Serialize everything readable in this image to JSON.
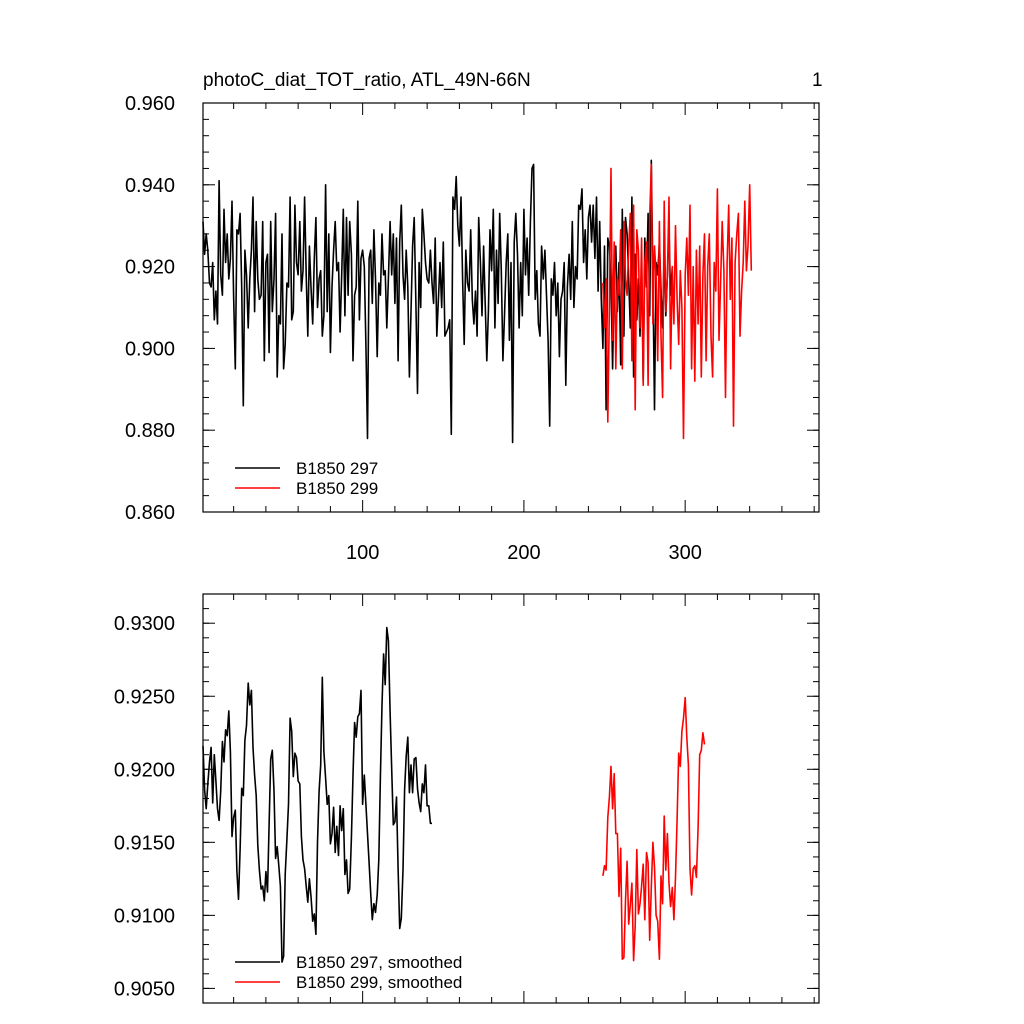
{
  "figure": {
    "title": "photoC_diat_TOT_ratio, ATL_49N-66N",
    "corner_label": "1"
  },
  "chart_data": [
    {
      "type": "line",
      "title": "photoC_diat_TOT_ratio, ATL_49N-66N",
      "xlim": [
        1,
        383
      ],
      "ylim": [
        0.86,
        0.96
      ],
      "x_ticks": [
        100,
        200,
        300
      ],
      "x_tick_labels": [
        "100",
        "200",
        "300"
      ],
      "y_ticks": [
        0.86,
        0.88,
        0.9,
        0.92,
        0.94,
        0.96
      ],
      "y_tick_labels": [
        "0.860",
        "0.880",
        "0.900",
        "0.920",
        "0.940",
        "0.960"
      ],
      "legend_position": "bottom-left",
      "series": [
        {
          "name": "B1850 297",
          "color": "#000000",
          "x_start": 1,
          "values": [
            0.931,
            0.923,
            0.928,
            0.924,
            0.916,
            0.915,
            0.921,
            0.907,
            0.914,
            0.906,
            0.941,
            0.918,
            0.913,
            0.934,
            0.921,
            0.928,
            0.917,
            0.922,
            0.936,
            0.913,
            0.895,
            0.929,
            0.928,
            0.933,
            0.915,
            0.886,
            0.924,
            0.918,
            0.905,
            0.917,
            0.924,
            0.937,
            0.909,
            0.931,
            0.917,
            0.912,
            0.913,
            0.931,
            0.897,
            0.921,
            0.923,
            0.899,
            0.931,
            0.909,
            0.917,
            0.933,
            0.893,
            0.908,
            0.906,
            0.928,
            0.895,
            0.901,
            0.916,
            0.915,
            0.937,
            0.907,
            0.909,
            0.935,
            0.921,
            0.918,
            0.931,
            0.914,
            0.919,
            0.937,
            0.918,
            0.903,
            0.925,
            0.915,
            0.906,
            0.922,
            0.932,
            0.91,
            0.917,
            0.919,
            0.903,
            0.908,
            0.94,
            0.909,
            0.928,
            0.899,
            0.915,
            0.924,
            0.931,
            0.919,
            0.921,
            0.904,
            0.918,
            0.934,
            0.908,
            0.932,
            0.913,
            0.931,
            0.923,
            0.897,
            0.913,
            0.915,
            0.936,
            0.907,
            0.922,
            0.924,
            0.92,
            0.901,
            0.878,
            0.922,
            0.924,
            0.911,
            0.929,
            0.917,
            0.898,
            0.916,
            0.913,
            0.928,
            0.918,
            0.919,
            0.905,
            0.917,
            0.931,
            0.918,
            0.928,
            0.911,
            0.927,
            0.897,
            0.926,
            0.935,
            0.918,
            0.912,
            0.924,
            0.915,
            0.893,
            0.909,
            0.925,
            0.932,
            0.911,
            0.889,
            0.921,
            0.91,
            0.934,
            0.928,
            0.921,
            0.917,
            0.916,
            0.924,
            0.916,
            0.911,
            0.927,
            0.903,
            0.912,
            0.921,
            0.91,
            0.926,
            0.903,
            0.904,
            0.905,
            0.907,
            0.879,
            0.937,
            0.934,
            0.942,
            0.93,
            0.925,
            0.937,
            0.917,
            0.901,
            0.924,
            0.916,
            0.914,
            0.929,
            0.912,
            0.906,
            0.914,
            0.903,
            0.932,
            0.921,
            0.908,
            0.925,
            0.911,
            0.897,
            0.909,
            0.929,
            0.919,
            0.934,
            0.905,
            0.924,
            0.911,
            0.933,
            0.919,
            0.897,
            0.908,
            0.921,
            0.928,
            0.902,
            0.921,
            0.877,
            0.926,
            0.933,
            0.923,
            0.905,
            0.921,
            0.908,
            0.934,
            0.918,
            0.927,
            0.913,
            0.931,
            0.944,
            0.945,
            0.912,
            0.919,
            0.906,
            0.903,
            0.925,
            0.917,
            0.924,
            0.913,
            0.902,
            0.881,
            0.917,
            0.913,
            0.921,
            0.908,
            0.916,
            0.898,
            0.912,
            0.914,
            0.921,
            0.891,
            0.915,
            0.923,
            0.912,
            0.931,
            0.91,
            0.92,
            0.917,
            0.935,
            0.934,
            0.939,
            0.921,
            0.929,
            0.917,
            0.932,
            0.935,
            0.926,
            0.935,
            0.922,
            0.937,
            0.914,
            0.931,
            0.912,
            0.9,
            0.925,
            0.885,
            0.927,
            0.925,
            0.916,
            0.895,
            0.918,
            0.925,
            0.909,
            0.921,
            0.896,
            0.934,
            0.903,
            0.932,
            0.928,
            0.917,
            0.905,
            0.937,
            0.893,
            0.923,
            0.907,
            0.917,
            0.903,
            0.921,
            0.892,
            0.927,
            0.915,
            0.933,
            0.908,
            0.946,
            0.917,
            0.885,
            0.921,
            0.918,
            0.926,
            0.914,
            0.905,
            0.924,
            0.908,
            0.918,
            0.929,
            0.913,
            0.92
          ]
        },
        {
          "name": "B1850 299",
          "color": "#ff0000",
          "x_start": 249,
          "values": [
            0.916,
            0.905,
            0.917,
            0.882,
            0.91,
            0.944,
            0.902,
            0.926,
            0.895,
            0.917,
            0.913,
            0.929,
            0.895,
            0.931,
            0.917,
            0.913,
            0.925,
            0.933,
            0.897,
            0.935,
            0.885,
            0.929,
            0.924,
            0.905,
            0.927,
            0.891,
            0.921,
            0.926,
            0.891,
            0.932,
            0.945,
            0.906,
            0.925,
            0.918,
            0.897,
            0.931,
            0.903,
            0.888,
            0.936,
            0.909,
            0.918,
            0.937,
            0.895,
            0.92,
            0.906,
            0.93,
            0.912,
            0.901,
            0.919,
            0.91,
            0.878,
            0.918,
            0.927,
            0.913,
            0.935,
            0.895,
            0.92,
            0.892,
            0.924,
            0.906,
            0.925,
            0.893,
            0.918,
            0.928,
            0.897,
            0.92,
            0.928,
            0.903,
            0.893,
            0.921,
            0.914,
            0.939,
            0.902,
            0.916,
            0.931,
            0.919,
            0.888,
            0.921,
            0.935,
            0.912,
            0.927,
            0.881,
            0.921,
            0.928,
            0.933,
            0.903,
            0.914,
            0.921,
            0.936,
            0.919,
            0.925,
            0.94,
            0.919
          ]
        }
      ]
    },
    {
      "type": "line",
      "xlim": [
        1,
        383
      ],
      "ylim": [
        0.904,
        0.932
      ],
      "y_ticks": [
        0.905,
        0.91,
        0.915,
        0.92,
        0.925,
        0.93
      ],
      "y_tick_labels": [
        "0.9050",
        "0.9100",
        "0.9150",
        "0.9200",
        "0.9250",
        "0.9300"
      ],
      "legend_position": "bottom-left",
      "series": [
        {
          "name": "B1850 297, smoothed",
          "color": "#000000",
          "x_start": 1,
          "values": [
            0.9216,
            0.9186,
            0.9173,
            0.919,
            0.9205,
            0.9215,
            0.9177,
            0.921,
            0.9192,
            0.9173,
            0.9165,
            0.9185,
            0.9219,
            0.9205,
            0.9227,
            0.9223,
            0.924,
            0.9212,
            0.9154,
            0.9167,
            0.9172,
            0.913,
            0.9111,
            0.9145,
            0.9187,
            0.9182,
            0.922,
            0.923,
            0.9259,
            0.9244,
            0.9254,
            0.9215,
            0.9196,
            0.9182,
            0.9148,
            0.9131,
            0.9118,
            0.912,
            0.911,
            0.913,
            0.9116,
            0.9162,
            0.9207,
            0.9213,
            0.9185,
            0.9139,
            0.9147,
            0.9134,
            0.912,
            0.9068,
            0.9072,
            0.9128,
            0.9152,
            0.9176,
            0.9235,
            0.9226,
            0.9195,
            0.9211,
            0.9208,
            0.9192,
            0.919,
            0.9154,
            0.9138,
            0.9132,
            0.912,
            0.9109,
            0.9125,
            0.9113,
            0.9096,
            0.9101,
            0.9087,
            0.915,
            0.9185,
            0.9203,
            0.9263,
            0.9212,
            0.9194,
            0.9176,
            0.9182,
            0.9149,
            0.9156,
            0.9174,
            0.9143,
            0.9161,
            0.9141,
            0.9175,
            0.9158,
            0.9173,
            0.9128,
            0.9138,
            0.9115,
            0.9118,
            0.9153,
            0.9196,
            0.9232,
            0.9222,
            0.9236,
            0.9238,
            0.9254,
            0.9176,
            0.9196,
            0.9176,
            0.9156,
            0.9136,
            0.9115,
            0.9097,
            0.9108,
            0.9102,
            0.9114,
            0.9138,
            0.9195,
            0.9244,
            0.9279,
            0.9258,
            0.9297,
            0.9288,
            0.9239,
            0.92,
            0.9162,
            0.9164,
            0.9181,
            0.9132,
            0.9091,
            0.9098,
            0.9131,
            0.9186,
            0.9209,
            0.9222,
            0.9184,
            0.9203,
            0.9184,
            0.9207,
            0.9208,
            0.9187,
            0.9177,
            0.9171,
            0.919,
            0.9184,
            0.9203,
            0.9175,
            0.9175,
            0.9163,
            0.9163
          ]
        },
        {
          "name": "B1850 299, smoothed",
          "color": "#ff0000",
          "x_start": 249,
          "values": [
            0.9127,
            0.9134,
            0.9131,
            0.9167,
            0.9181,
            0.9202,
            0.9173,
            0.9197,
            0.9156,
            0.9156,
            0.9113,
            0.9146,
            0.907,
            0.9071,
            0.911,
            0.9137,
            0.9094,
            0.9107,
            0.9122,
            0.9069,
            0.9093,
            0.9145,
            0.9101,
            0.9108,
            0.912,
            0.9135,
            0.9097,
            0.9143,
            0.9136,
            0.9083,
            0.9119,
            0.915,
            0.9133,
            0.91,
            0.9096,
            0.907,
            0.9127,
            0.9108,
            0.9168,
            0.9131,
            0.9156,
            0.9122,
            0.9106,
            0.9119,
            0.9097,
            0.9126,
            0.9166,
            0.9211,
            0.9202,
            0.9226,
            0.9235,
            0.9249,
            0.9222,
            0.9203,
            0.9132,
            0.9114,
            0.9132,
            0.9134,
            0.9126,
            0.916,
            0.921,
            0.9213,
            0.9225,
            0.9217
          ]
        }
      ]
    }
  ]
}
